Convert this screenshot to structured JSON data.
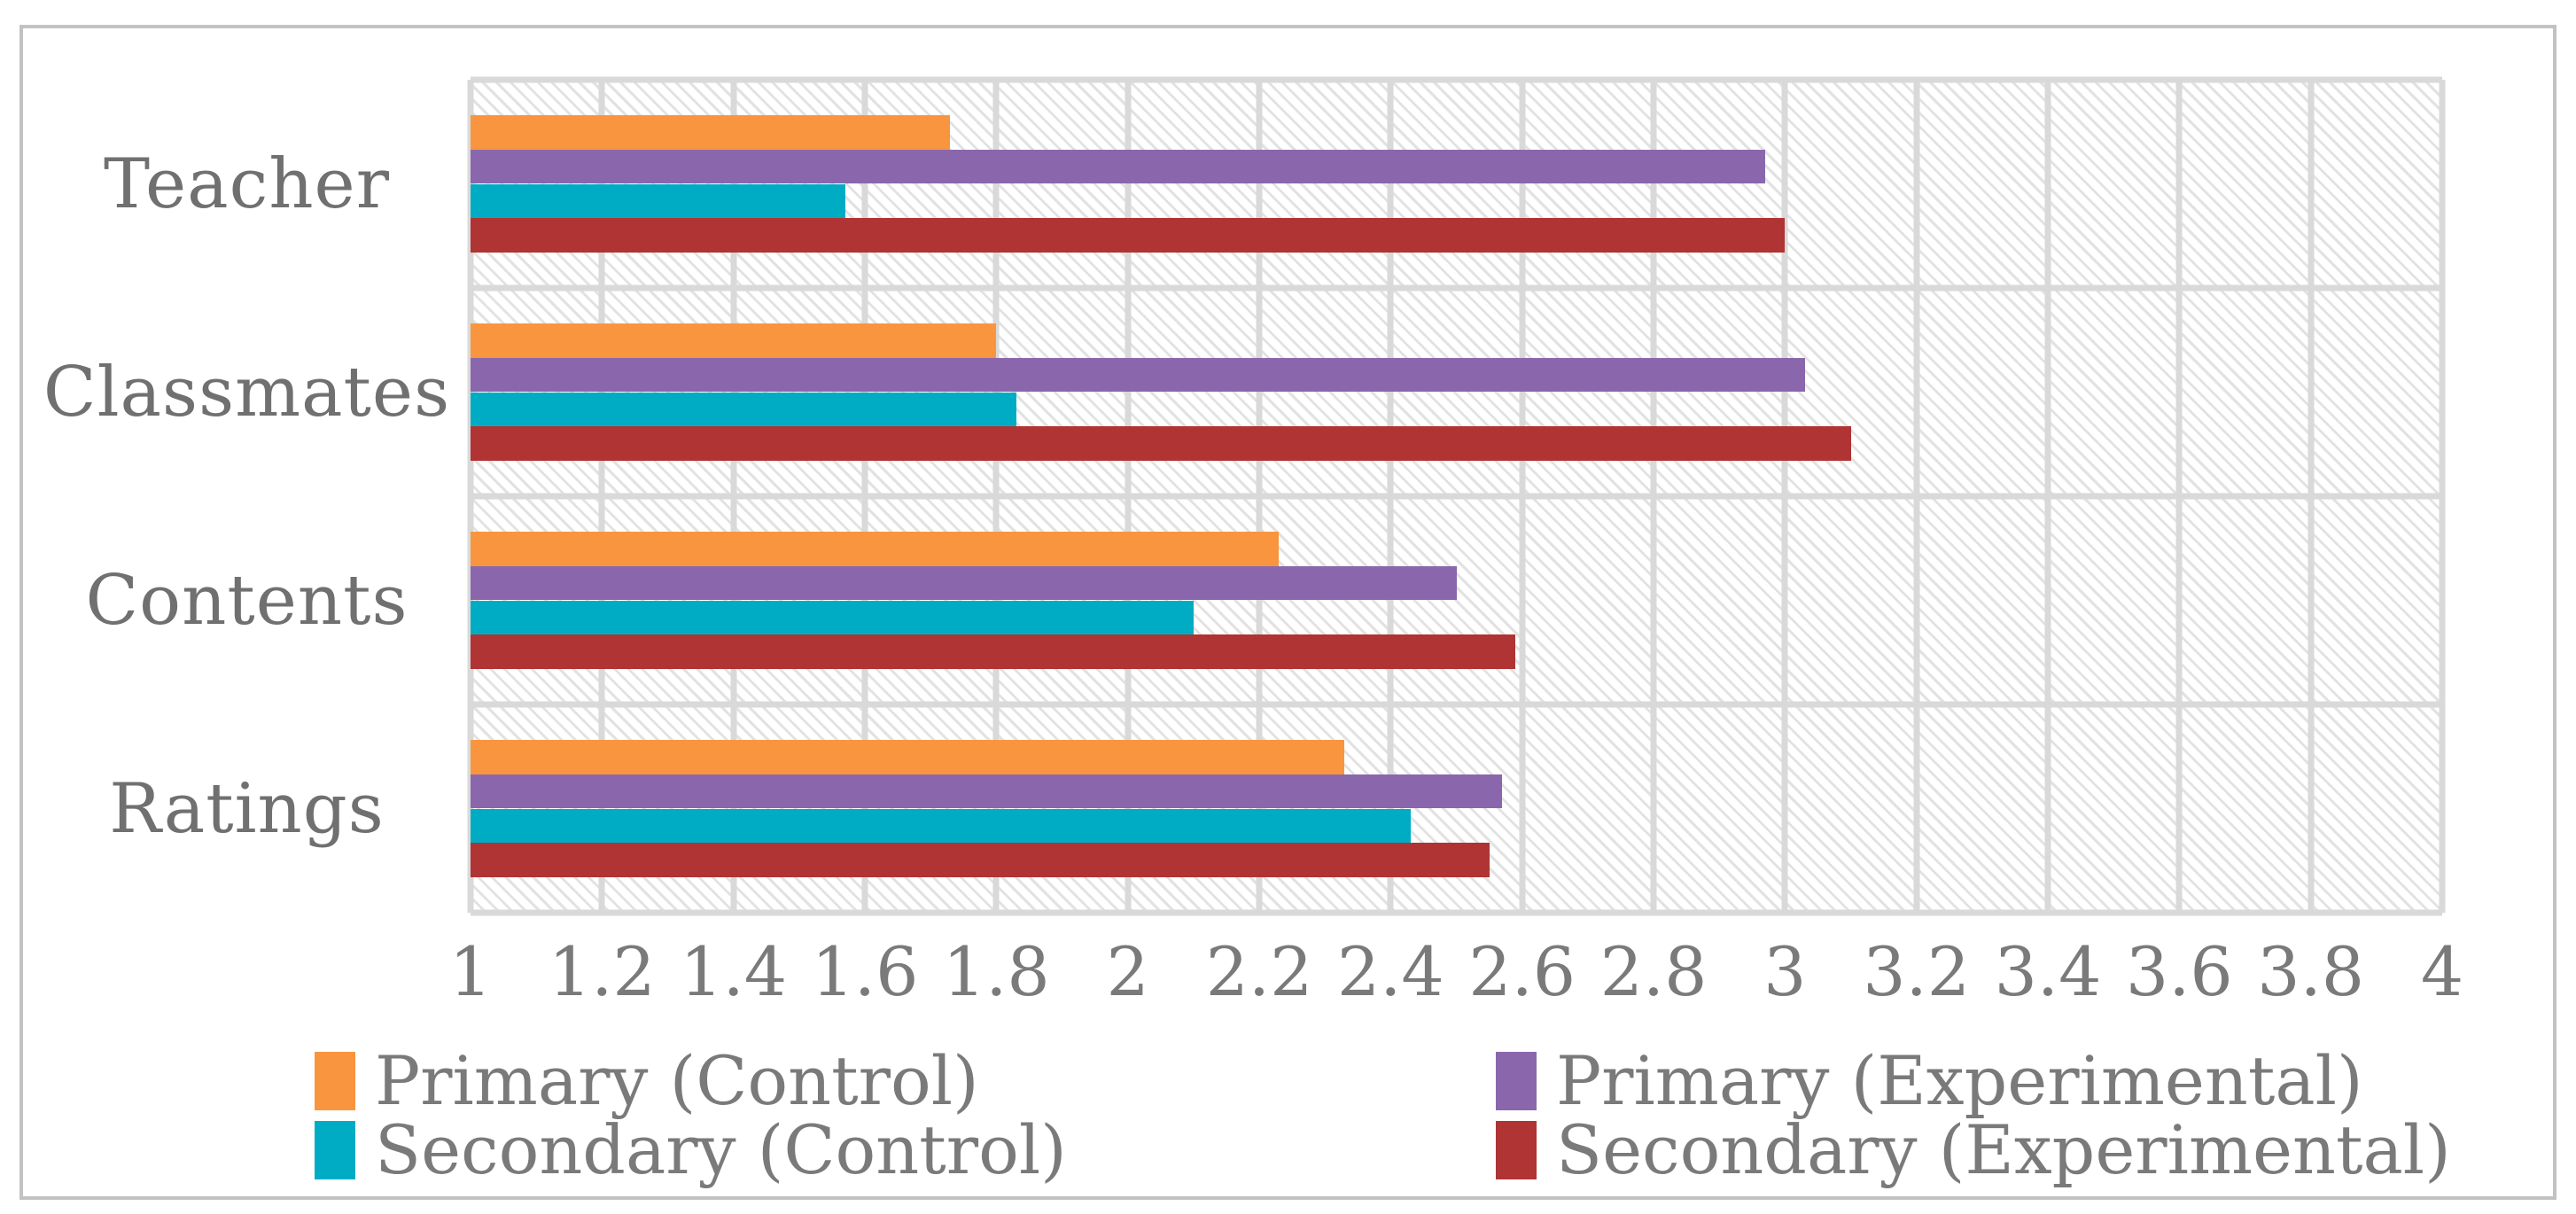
{
  "figure": {
    "background_color": "#FFFFFF",
    "border_color": "#C2C2C2",
    "text_color": "#7A7A7A",
    "gridline_color": "#D9D9D9",
    "plot_hatch": "light-diagonal-pattern"
  },
  "chart_data": {
    "type": "bar",
    "orientation": "horizontal",
    "title": "",
    "xlabel": "",
    "ylabel": "",
    "categories": [
      "Teacher",
      "Classmates",
      "Contents",
      "Ratings"
    ],
    "series": [
      {
        "name": "Primary (Control)",
        "color": "#F9953E",
        "values": [
          1.73,
          1.8,
          2.23,
          2.33
        ]
      },
      {
        "name": "Primary (Experimental)",
        "color": "#8A67AC",
        "values": [
          2.97,
          3.03,
          2.5,
          2.57
        ]
      },
      {
        "name": "Secondary (Control)",
        "color": "#00ACC4",
        "values": [
          1.57,
          1.83,
          2.1,
          2.43
        ]
      },
      {
        "name": "Secondary (Experimental)",
        "color": "#AF3433",
        "values": [
          3.0,
          3.1,
          2.59,
          2.55
        ]
      }
    ],
    "xlim": [
      1,
      4
    ],
    "xticks": [
      1,
      1.2,
      1.4,
      1.6,
      1.8,
      2,
      2.2,
      2.4,
      2.6,
      2.8,
      3,
      3.2,
      3.4,
      3.6,
      3.8,
      4
    ],
    "xtick_labels": [
      "1",
      "1.2",
      "1.4",
      "1.6",
      "1.8",
      "2",
      "2.2",
      "2.4",
      "2.6",
      "2.8",
      "3",
      "3.2",
      "3.4",
      "3.6",
      "3.8",
      "4"
    ],
    "grid": "both",
    "legend_position": "bottom",
    "legend_order": [
      "Primary (Control)",
      "Primary (Experimental)",
      "Secondary (Control)",
      "Secondary (Experimental)"
    ]
  }
}
